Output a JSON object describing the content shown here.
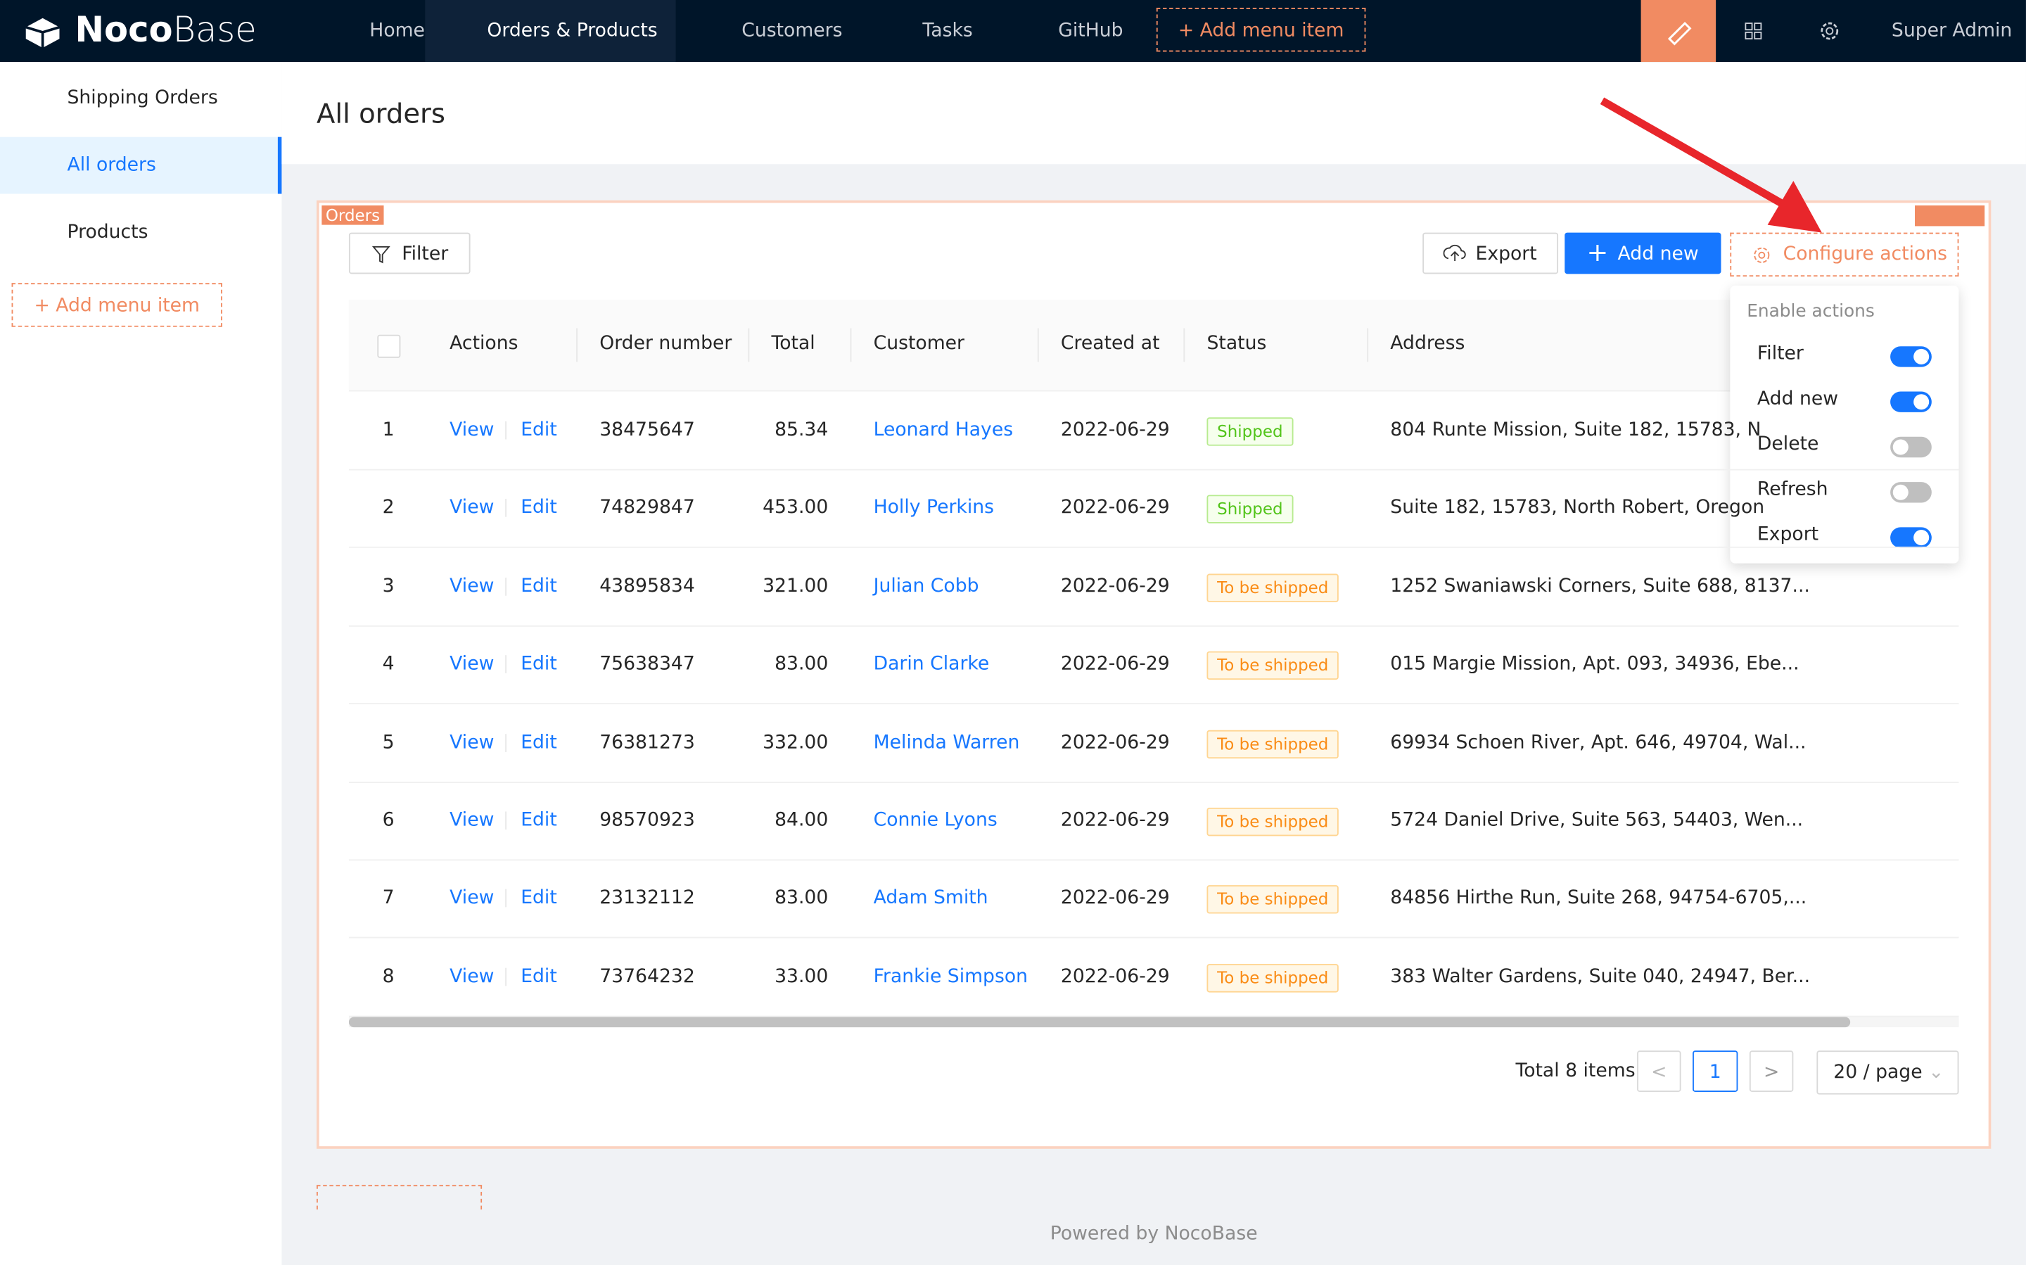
{
  "header": {
    "logo": {
      "bold": "Noco",
      "light": "Base"
    },
    "menu": [
      "Home",
      "Orders & Products",
      "Customers",
      "Tasks",
      "GitHub"
    ],
    "active_menu": 1,
    "add_menu": "Add menu item",
    "user": "Super Admin"
  },
  "sidebar": {
    "items": [
      "Shipping Orders",
      "All orders",
      "Products"
    ],
    "active": 1,
    "add_menu": "Add menu item"
  },
  "page": {
    "title": "All orders"
  },
  "block": {
    "label": "Orders",
    "buttons": {
      "filter": "Filter",
      "export": "Export",
      "add_new": "Add new",
      "configure": "Configure actions"
    },
    "dropdown": {
      "title": "Enable actions",
      "items": [
        {
          "label": "Filter",
          "enabled": true
        },
        {
          "label": "Add new",
          "enabled": true
        },
        {
          "label": "Delete",
          "enabled": false
        },
        {
          "label": "Refresh",
          "enabled": false
        },
        {
          "label": "Export",
          "enabled": true
        }
      ]
    },
    "table": {
      "columns": [
        "Actions",
        "Order number",
        "Total",
        "Customer",
        "Created at",
        "Status",
        "Address"
      ],
      "row_actions": [
        "View",
        "Edit"
      ],
      "rows": [
        [
          "1",
          "38475647",
          "85.34",
          "Leonard Hayes",
          "2022-06-29",
          {
            "label": "Shipped",
            "color": "green"
          },
          "804 Runte Mission, Suite 182, 15783, N"
        ],
        [
          "2",
          "74829847",
          "453.00",
          "Holly Perkins",
          "2022-06-29",
          {
            "label": "Shipped",
            "color": "green"
          },
          "Suite 182, 15783, North Robert, Oregon"
        ],
        [
          "3",
          "43895834",
          "321.00",
          "Julian Cobb",
          "2022-06-29",
          {
            "label": "To be shipped",
            "color": "orange"
          },
          "1252 Swaniawski Corners, Suite 688, 8137..."
        ],
        [
          "4",
          "75638347",
          "83.00",
          "Darin Clarke",
          "2022-06-29",
          {
            "label": "To be shipped",
            "color": "orange"
          },
          "015 Margie Mission, Apt. 093, 34936, Ebe..."
        ],
        [
          "5",
          "76381273",
          "332.00",
          "Melinda Warren",
          "2022-06-29",
          {
            "label": "To be shipped",
            "color": "orange"
          },
          "69934 Schoen River, Apt. 646, 49704, Wal..."
        ],
        [
          "6",
          "98570923",
          "84.00",
          "Connie Lyons",
          "2022-06-29",
          {
            "label": "To be shipped",
            "color": "orange"
          },
          "5724 Daniel Drive, Suite 563, 54403, Wen..."
        ],
        [
          "7",
          "23132112",
          "83.00",
          "Adam Smith",
          "2022-06-29",
          {
            "label": "To be shipped",
            "color": "orange"
          },
          "84856 Hirthe Run, Suite 268, 94754-6705,..."
        ],
        [
          "8",
          "73764232",
          "33.00",
          "Frankie Simpson",
          "2022-06-29",
          {
            "label": "To be shipped",
            "color": "orange"
          },
          "383 Walter Gardens, Suite 040, 24947, Ber..."
        ]
      ]
    },
    "pagination": {
      "total": "Total 8 items",
      "page": "1",
      "size": "20 / page"
    }
  },
  "footer": "Powered by NocoBase"
}
